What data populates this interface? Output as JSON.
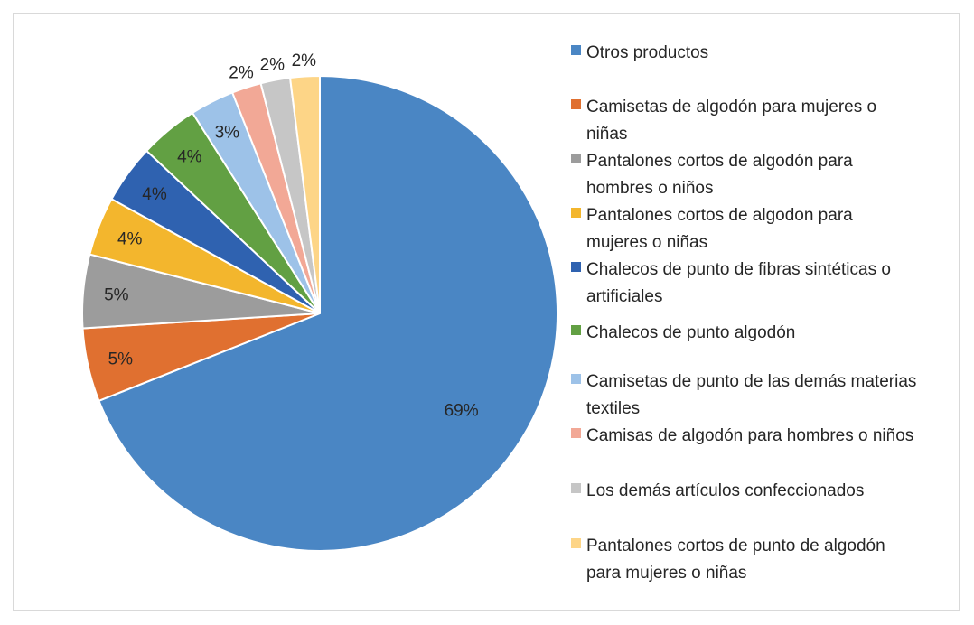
{
  "chart_data": {
    "type": "pie",
    "title": "",
    "series": [
      {
        "values": [
          69,
          5,
          5,
          4,
          4,
          4,
          3,
          2,
          2,
          2
        ],
        "labels": [
          "69%",
          "5%",
          "5%",
          "4%",
          "4%",
          "4%",
          "3%",
          "2%",
          "2%",
          "2%"
        ]
      }
    ],
    "categories": [
      "Otros productos",
      "Camisetas de algodón para mujeres o niñas",
      "Pantalones cortos de algodón para hombres o niños",
      "Pantalones cortos de algodon para mujeres o niñas",
      "Chalecos de punto de fibras sintéticas o artificiales",
      "Chalecos de punto algodón",
      "Camisetas de punto de las demás materias textiles",
      "Camisas de algodón para hombres o niños",
      "Los demás artículos confeccionados",
      "Pantalones cortos de punto de algodón para mujeres o niñas"
    ],
    "legend_display": [
      "Otros productos",
      "Camisetas de algodón para mujeres o\nniñas",
      "Pantalones cortos de algodón para\nhombres o niños",
      "Pantalones cortos de algodon para\nmujeres o niñas",
      "Chalecos de punto de fibras sintéticas o\nartificiales",
      "Chalecos de punto algodón",
      "Camisetas de punto de las demás materias\ntextiles",
      "Camisas de algodón para hombres o niños",
      "Los demás artículos confeccionados",
      "Pantalones cortos de punto de algodón\npara mujeres o niñas"
    ],
    "colors": [
      "#4a86c4",
      "#e07030",
      "#9c9c9c",
      "#f3b62d",
      "#2f62b0",
      "#62a043",
      "#9dc2e8",
      "#f2a896",
      "#c6c6c6",
      "#fdd587"
    ],
    "legend_placement": "right"
  }
}
